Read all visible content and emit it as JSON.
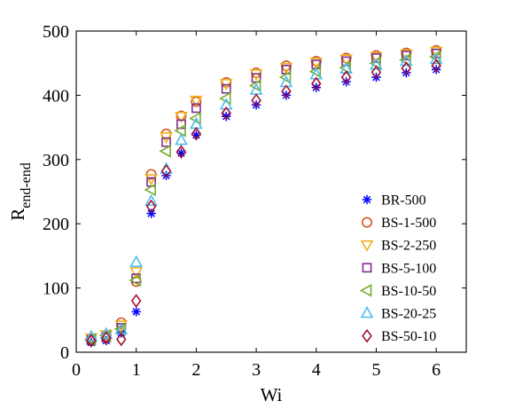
{
  "chart_data": {
    "type": "scatter",
    "xlabel": "Wi",
    "ylabel_main": "R",
    "ylabel_sub": "end-end",
    "xlim": [
      0,
      6.5
    ],
    "ylim": [
      0,
      500
    ],
    "xticks": [
      0,
      1,
      2,
      3,
      4,
      5,
      6
    ],
    "yticks": [
      0,
      100,
      200,
      300,
      400,
      500
    ],
    "grid": false,
    "legend_position": "lower-right",
    "series": [
      {
        "name": "BR-500",
        "marker": "asterisk",
        "color": "#0000ff",
        "x": [
          0.25,
          0.5,
          0.75,
          1.0,
          1.25,
          1.5,
          1.75,
          2.0,
          2.5,
          3.0,
          3.5,
          4.0,
          4.5,
          5.0,
          5.5,
          6.0
        ],
        "y": [
          15,
          18,
          30,
          63,
          216,
          275,
          310,
          338,
          367,
          385,
          400,
          412,
          421,
          428,
          435,
          440
        ]
      },
      {
        "name": "BS-1-500",
        "marker": "circle",
        "color": "#d95319",
        "x": [
          0.25,
          0.5,
          0.75,
          1.0,
          1.25,
          1.5,
          1.75,
          2.0,
          2.5,
          3.0,
          3.5,
          4.0,
          4.5,
          5.0,
          5.5,
          6.0
        ],
        "y": [
          20,
          25,
          46,
          110,
          277,
          340,
          368,
          390,
          420,
          435,
          446,
          453,
          458,
          462,
          466,
          470
        ]
      },
      {
        "name": "BS-2-250",
        "marker": "triangle-down",
        "color": "#edb120",
        "x": [
          0.25,
          0.5,
          0.75,
          1.0,
          1.25,
          1.5,
          1.75,
          2.0,
          2.5,
          3.0,
          3.5,
          4.0,
          4.5,
          5.0,
          5.5,
          6.0
        ],
        "y": [
          22,
          27,
          42,
          125,
          270,
          335,
          367,
          392,
          418,
          433,
          443,
          451,
          456,
          460,
          464,
          468
        ]
      },
      {
        "name": "BS-5-100",
        "marker": "square",
        "color": "#7e2f8e",
        "x": [
          0.25,
          0.5,
          0.75,
          1.0,
          1.25,
          1.5,
          1.75,
          2.0,
          2.5,
          3.0,
          3.5,
          4.0,
          4.5,
          5.0,
          5.5,
          6.0
        ],
        "y": [
          19,
          23,
          38,
          115,
          265,
          327,
          355,
          380,
          410,
          427,
          440,
          448,
          453,
          458,
          462,
          465
        ]
      },
      {
        "name": "BS-10-50",
        "marker": "triangle-left",
        "color": "#77ac30",
        "x": [
          0.25,
          0.5,
          0.75,
          1.0,
          1.25,
          1.5,
          1.75,
          2.0,
          2.5,
          3.0,
          3.5,
          4.0,
          4.5,
          5.0,
          5.5,
          6.0
        ],
        "y": [
          20,
          26,
          36,
          112,
          253,
          313,
          345,
          364,
          395,
          415,
          428,
          437,
          443,
          450,
          455,
          460
        ]
      },
      {
        "name": "BS-20-25",
        "marker": "triangle-up",
        "color": "#4dbeee",
        "x": [
          0.25,
          0.5,
          0.75,
          1.0,
          1.25,
          1.5,
          1.75,
          2.0,
          2.5,
          3.0,
          3.5,
          4.0,
          4.5,
          5.0,
          5.5,
          6.0
        ],
        "y": [
          24,
          28,
          35,
          140,
          235,
          285,
          330,
          355,
          385,
          408,
          420,
          432,
          441,
          447,
          453,
          456
        ]
      },
      {
        "name": "BS-50-10",
        "marker": "diamond",
        "color": "#a2142f",
        "x": [
          0.25,
          0.5,
          0.75,
          1.0,
          1.25,
          1.5,
          1.75,
          2.0,
          2.5,
          3.0,
          3.5,
          4.0,
          4.5,
          5.0,
          5.5,
          6.0
        ],
        "y": [
          18,
          22,
          20,
          80,
          227,
          282,
          312,
          340,
          372,
          392,
          406,
          418,
          428,
          436,
          442,
          446
        ]
      }
    ]
  }
}
